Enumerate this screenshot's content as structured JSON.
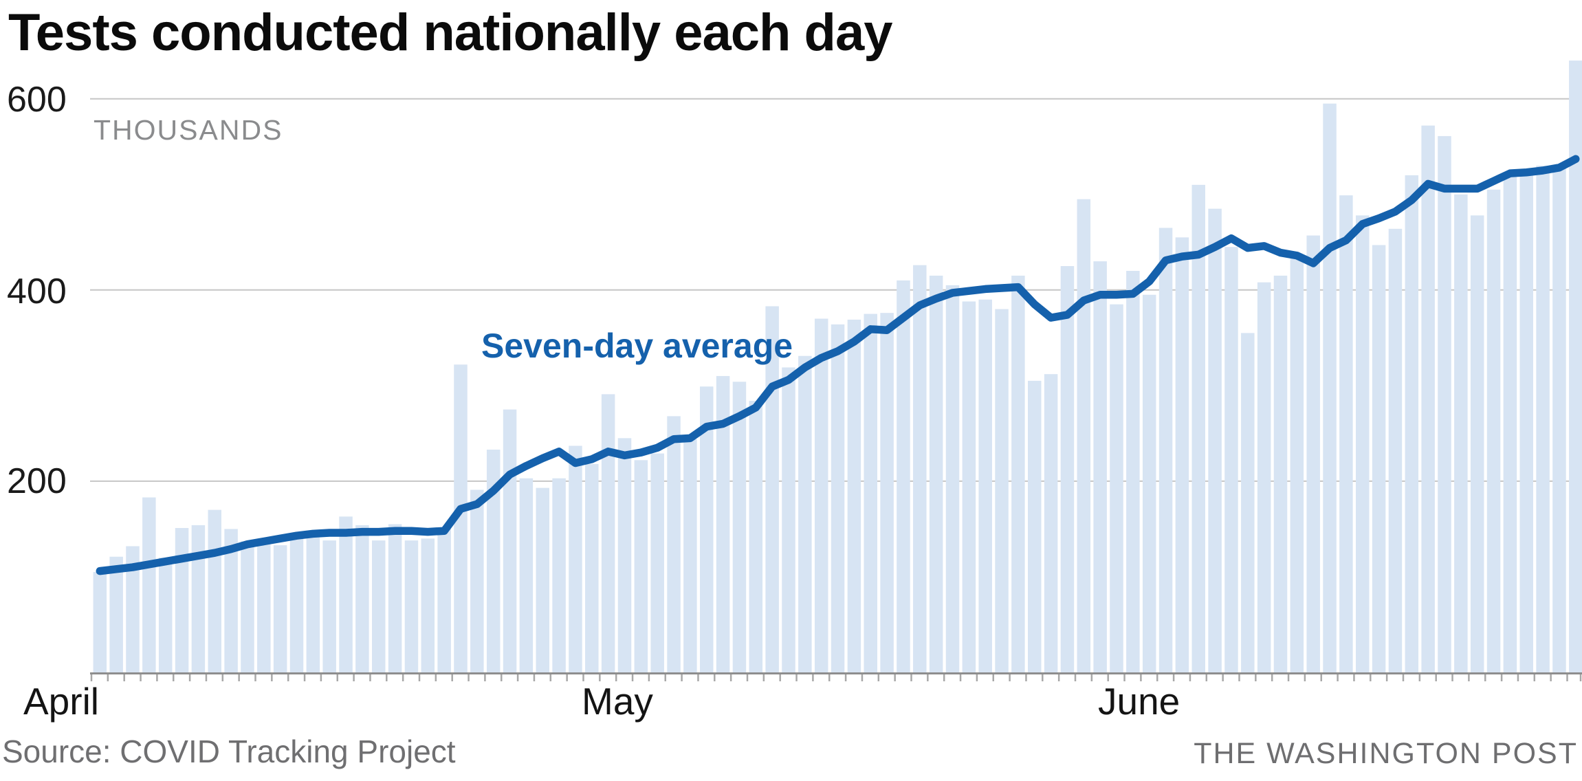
{
  "title": "Tests conducted nationally each day",
  "y_axis": {
    "unit_label": "THOUSANDS",
    "ticks": {
      "t600": "600",
      "t400": "400",
      "t200": "200"
    }
  },
  "x_axis": {
    "months": {
      "m1": "April",
      "m2": "May",
      "m3": "June"
    }
  },
  "annotation": {
    "line_label": "Seven-day average"
  },
  "footer": {
    "source": "Source: COVID Tracking Project",
    "credit": "THE WASHINGTON POST"
  },
  "chart_data": {
    "type": "bar",
    "subtype": "daily bars with 7-day average line overlay",
    "unit": "thousands of tests per day",
    "months": [
      "April",
      "May",
      "June"
    ],
    "days_per_month": [
      30,
      31,
      30
    ],
    "ylim": [
      0,
      660
    ],
    "y_gridlines": [
      200,
      400,
      600
    ],
    "grid_on": true,
    "legend_position": "inline annotation on line",
    "series": [
      {
        "name": "Daily tests (thousands)",
        "type": "bar",
        "values": [
          105,
          121,
          132,
          183,
          120,
          151,
          154,
          170,
          150,
          137,
          140,
          133,
          141,
          143,
          138,
          163,
          154,
          138,
          155,
          138,
          140,
          150,
          322,
          191,
          233,
          275,
          203,
          193,
          203,
          237,
          218,
          291,
          245,
          222,
          229,
          268,
          244,
          299,
          310,
          304,
          284,
          383,
          319,
          331,
          370,
          364,
          369,
          375,
          376,
          410,
          426,
          415,
          405,
          388,
          390,
          380,
          415,
          305,
          312,
          425,
          495,
          430,
          385,
          420,
          395,
          465,
          455,
          510,
          485,
          445,
          355,
          408,
          415,
          433,
          457,
          595,
          499,
          478,
          447,
          464,
          520,
          572,
          561,
          500,
          478,
          505,
          520,
          522,
          530,
          528,
          640
        ]
      },
      {
        "name": "Seven-day average",
        "type": "line",
        "values": [
          106,
          108,
          110,
          113,
          116,
          119,
          122,
          125,
          129,
          134,
          137,
          140,
          143,
          145,
          146,
          146,
          147,
          147,
          148,
          148,
          147,
          148,
          171,
          176,
          190,
          207,
          216,
          224,
          231,
          219,
          223,
          231,
          227,
          230,
          235,
          244,
          245,
          257,
          260,
          268,
          277,
          299,
          306,
          319,
          329,
          336,
          346,
          359,
          358,
          371,
          384,
          391,
          397,
          399,
          401,
          402,
          403,
          385,
          371,
          374,
          389,
          395,
          395,
          396,
          409,
          431,
          435,
          437,
          445,
          454,
          444,
          446,
          439,
          436,
          428,
          444,
          452,
          469,
          475,
          482,
          494,
          511,
          506,
          506,
          506,
          514,
          522,
          523,
          525,
          528,
          537
        ]
      }
    ],
    "colors": {
      "bar": "#d7e4f3",
      "line": "#1561ac",
      "grid": "#c6c6c6",
      "baseline": "#8e8e8e",
      "tick": "#a8a8a8",
      "title_text": "#0b0b0b",
      "axis_text": "#1a1a1a",
      "muted_text": "#8a8b8d",
      "footer_text": "#6f6f71"
    }
  }
}
